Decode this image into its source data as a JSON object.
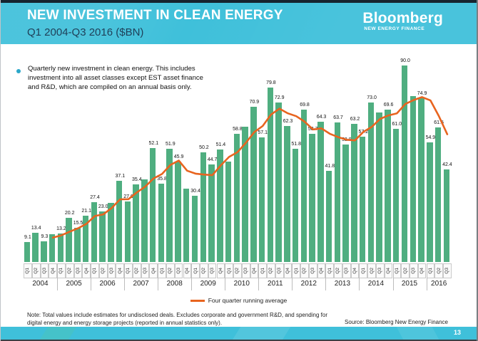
{
  "header": {
    "title": "NEW INVESTMENT IN CLEAN ENERGY",
    "subtitle": "Q1 2004-Q3 2016 ($BN)",
    "logo": {
      "brand": "Bloomberg",
      "sub": "NEW ENERGY FINANCE"
    }
  },
  "bullet": {
    "text": "Quarterly new investment in clean energy. This includes\ninvestment into all asset classes except EST asset finance\nand R&D, which are compiled on an annual basis only."
  },
  "chart_data": {
    "type": "bar",
    "title": "NEW INVESTMENT IN CLEAN ENERGY",
    "subtitle": "Q1 2004-Q3 2016 ($BN)",
    "unit": "$BN",
    "ylim": [
      0,
      95
    ],
    "grid": false,
    "y_axis_shown": false,
    "bar_color": "#4fae80",
    "line_color": "#e8641f",
    "legend": [
      "Four quarter running average"
    ],
    "legend_position": "bottom-center",
    "line_series_name": "Four quarter running average",
    "line_series_note": "4-quarter running average of the bar values, plotted from Q4 2004 onward",
    "quarters": [
      {
        "year": 2004,
        "quarter": "Q1",
        "value": 9.1,
        "label": "9.1"
      },
      {
        "year": 2004,
        "quarter": "Q2",
        "value": 13.4,
        "label": "13.4"
      },
      {
        "year": 2004,
        "quarter": "Q3",
        "value": 9.3,
        "label": "9.3"
      },
      {
        "year": 2004,
        "quarter": "Q4",
        "value": 12.8,
        "label": null
      },
      {
        "year": 2005,
        "quarter": "Q1",
        "value": 13.2,
        "label": "13.2"
      },
      {
        "year": 2005,
        "quarter": "Q2",
        "value": 20.2,
        "label": "20.2"
      },
      {
        "year": 2005,
        "quarter": "Q3",
        "value": 15.5,
        "label": "15.5"
      },
      {
        "year": 2005,
        "quarter": "Q4",
        "value": 21.1,
        "label": "21.1"
      },
      {
        "year": 2006,
        "quarter": "Q1",
        "value": 27.4,
        "label": "27.4"
      },
      {
        "year": 2006,
        "quarter": "Q2",
        "value": 23.0,
        "label": "23.0"
      },
      {
        "year": 2006,
        "quarter": "Q3",
        "value": 27.2,
        "label": null
      },
      {
        "year": 2006,
        "quarter": "Q4",
        "value": 37.1,
        "label": "37.1"
      },
      {
        "year": 2007,
        "quarter": "Q1",
        "value": 27.6,
        "label": "27.6"
      },
      {
        "year": 2007,
        "quarter": "Q2",
        "value": 35.4,
        "label": "35.4"
      },
      {
        "year": 2007,
        "quarter": "Q3",
        "value": 37.8,
        "label": null
      },
      {
        "year": 2007,
        "quarter": "Q4",
        "value": 52.1,
        "label": "52.1"
      },
      {
        "year": 2008,
        "quarter": "Q1",
        "value": 35.8,
        "label": "35.8"
      },
      {
        "year": 2008,
        "quarter": "Q2",
        "value": 51.9,
        "label": "51.9"
      },
      {
        "year": 2008,
        "quarter": "Q3",
        "value": 45.9,
        "label": "45.9"
      },
      {
        "year": 2008,
        "quarter": "Q4",
        "value": 33.5,
        "label": null
      },
      {
        "year": 2009,
        "quarter": "Q1",
        "value": 30.4,
        "label": "30.4"
      },
      {
        "year": 2009,
        "quarter": "Q2",
        "value": 50.2,
        "label": "50.2"
      },
      {
        "year": 2009,
        "quarter": "Q3",
        "value": 44.7,
        "label": "44.7"
      },
      {
        "year": 2009,
        "quarter": "Q4",
        "value": 51.4,
        "label": "51.4"
      },
      {
        "year": 2010,
        "quarter": "Q1",
        "value": 46.0,
        "label": null
      },
      {
        "year": 2010,
        "quarter": "Q2",
        "value": 58.8,
        "label": "58.8"
      },
      {
        "year": 2010,
        "quarter": "Q3",
        "value": 62.0,
        "label": null
      },
      {
        "year": 2010,
        "quarter": "Q4",
        "value": 70.9,
        "label": "70.9"
      },
      {
        "year": 2011,
        "quarter": "Q1",
        "value": 57.1,
        "label": "57.1"
      },
      {
        "year": 2011,
        "quarter": "Q2",
        "value": 79.8,
        "label": "79.8"
      },
      {
        "year": 2011,
        "quarter": "Q3",
        "value": 72.9,
        "label": "72.9"
      },
      {
        "year": 2011,
        "quarter": "Q4",
        "value": 62.3,
        "label": "62.3"
      },
      {
        "year": 2012,
        "quarter": "Q1",
        "value": 51.8,
        "label": "51.8"
      },
      {
        "year": 2012,
        "quarter": "Q2",
        "value": 69.8,
        "label": "69.8"
      },
      {
        "year": 2012,
        "quarter": "Q3",
        "value": 58.7,
        "label": "58.7"
      },
      {
        "year": 2012,
        "quarter": "Q4",
        "value": 64.3,
        "label": "64.3"
      },
      {
        "year": 2013,
        "quarter": "Q1",
        "value": 41.8,
        "label": "41.8"
      },
      {
        "year": 2013,
        "quarter": "Q2",
        "value": 63.7,
        "label": "63.7"
      },
      {
        "year": 2013,
        "quarter": "Q3",
        "value": 53.9,
        "label": "53.9"
      },
      {
        "year": 2013,
        "quarter": "Q4",
        "value": 63.2,
        "label": "63.2"
      },
      {
        "year": 2014,
        "quarter": "Q1",
        "value": 57.2,
        "label": "57.2"
      },
      {
        "year": 2014,
        "quarter": "Q2",
        "value": 73.0,
        "label": "73.0"
      },
      {
        "year": 2014,
        "quarter": "Q3",
        "value": 68.5,
        "label": null
      },
      {
        "year": 2014,
        "quarter": "Q4",
        "value": 69.6,
        "label": "69.6"
      },
      {
        "year": 2015,
        "quarter": "Q1",
        "value": 61.0,
        "label": "61.0"
      },
      {
        "year": 2015,
        "quarter": "Q2",
        "value": 90.0,
        "label": "90.0"
      },
      {
        "year": 2015,
        "quarter": "Q3",
        "value": 75.8,
        "label": null
      },
      {
        "year": 2015,
        "quarter": "Q4",
        "value": 74.9,
        "label": "74.9"
      },
      {
        "year": 2016,
        "quarter": "Q1",
        "value": 54.9,
        "label": "54.9"
      },
      {
        "year": 2016,
        "quarter": "Q2",
        "value": 61.5,
        "label": "61.5"
      },
      {
        "year": 2016,
        "quarter": "Q3",
        "value": 42.4,
        "label": "42.4"
      }
    ]
  },
  "legend": {
    "label": "Four quarter running average"
  },
  "footnote": "Note: Total values include estimates for undisclosed deals. Excludes corporate and government R&D, and spending for\ndigital energy and energy storage projects (reported in annual statistics only).",
  "source": "Source: Bloomberg New Energy Finance",
  "page_number": "13",
  "colors": {
    "header_teal": "#3fc0da",
    "bar_green": "#4fae80",
    "line_orange": "#e8641f",
    "subtitle_navy": "#1f3f58"
  }
}
